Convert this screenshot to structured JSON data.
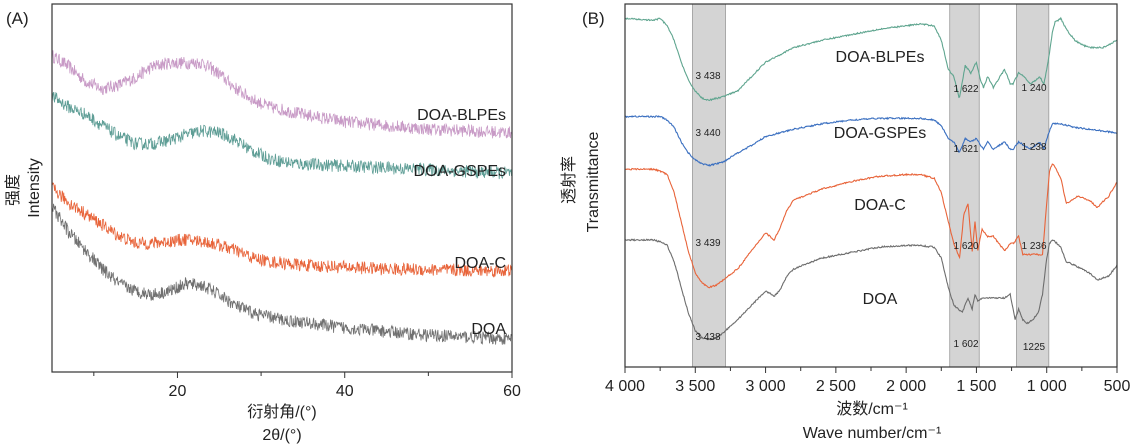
{
  "chart_data": [
    {
      "panel": "(A)",
      "type": "line",
      "title": "",
      "xlabel_cn": "衍射角/(°)",
      "xlabel": "2θ/(°)",
      "ylabel_cn": "强度",
      "ylabel": "Intensity",
      "xlim": [
        5,
        60
      ],
      "xticks": [
        20,
        40,
        60
      ],
      "xticks_minor": [
        10,
        30,
        50
      ],
      "yticks": [],
      "grid": false,
      "legend": "inline labels at right",
      "series": [
        {
          "name": "DOA-BLPEs",
          "color": "#c89ac6",
          "x": [
            5,
            7,
            9,
            11,
            13,
            15,
            17,
            19,
            21,
            23,
            25,
            27,
            29,
            31,
            33,
            35,
            40,
            45,
            50,
            55,
            60
          ],
          "y": [
            0.86,
            0.83,
            0.79,
            0.77,
            0.78,
            0.8,
            0.83,
            0.84,
            0.84,
            0.84,
            0.81,
            0.77,
            0.74,
            0.72,
            0.71,
            0.7,
            0.68,
            0.67,
            0.66,
            0.655,
            0.65
          ]
        },
        {
          "name": "DOA-GSPEs",
          "color": "#5f9e96",
          "x": [
            5,
            7,
            9,
            11,
            13,
            15,
            17,
            19,
            21,
            23,
            25,
            27,
            29,
            31,
            33,
            35,
            40,
            45,
            50,
            55,
            60
          ],
          "y": [
            0.75,
            0.72,
            0.7,
            0.67,
            0.64,
            0.62,
            0.62,
            0.63,
            0.645,
            0.655,
            0.65,
            0.63,
            0.6,
            0.58,
            0.57,
            0.565,
            0.56,
            0.555,
            0.55,
            0.545,
            0.54
          ]
        },
        {
          "name": "DOA-C",
          "color": "#e8643a",
          "x": [
            5,
            7,
            9,
            11,
            13,
            15,
            17,
            19,
            21,
            23,
            25,
            27,
            29,
            31,
            33,
            35,
            40,
            45,
            50,
            55,
            60
          ],
          "y": [
            0.5,
            0.46,
            0.43,
            0.4,
            0.37,
            0.35,
            0.35,
            0.355,
            0.36,
            0.355,
            0.345,
            0.33,
            0.31,
            0.3,
            0.295,
            0.29,
            0.285,
            0.28,
            0.278,
            0.276,
            0.275
          ]
        },
        {
          "name": "DOA",
          "color": "#707070",
          "x": [
            5,
            7,
            9,
            11,
            13,
            15,
            17,
            19,
            21,
            23,
            25,
            27,
            29,
            31,
            33,
            35,
            40,
            45,
            50,
            55,
            60
          ],
          "y": [
            0.45,
            0.38,
            0.33,
            0.28,
            0.24,
            0.22,
            0.21,
            0.22,
            0.24,
            0.235,
            0.21,
            0.18,
            0.16,
            0.15,
            0.14,
            0.135,
            0.12,
            0.11,
            0.1,
            0.095,
            0.09
          ]
        }
      ]
    },
    {
      "panel": "(B)",
      "type": "line",
      "title": "",
      "xlabel_cn": "波数/cm⁻¹",
      "xlabel": "Wave number/cm⁻¹",
      "ylabel_cn": "透射率",
      "ylabel": "Transmittance",
      "xlim": [
        4000,
        500
      ],
      "xticks": [
        4000,
        3500,
        3000,
        2500,
        2000,
        1500,
        1000,
        500
      ],
      "xtick_labels": [
        "4 000",
        "3 500",
        "3 000",
        "2 500",
        "2 000",
        "1 500",
        "1 000",
        "500"
      ],
      "yticks": [],
      "grid": false,
      "legend": "inline labels at center",
      "bands": [
        {
          "from": 3520,
          "to": 3285
        },
        {
          "from": 1690,
          "to": 1480
        },
        {
          "from": 1215,
          "to": 985
        }
      ],
      "series": [
        {
          "name": "DOA-BLPEs",
          "color": "#5fa58f",
          "x": [
            4000,
            3800,
            3750,
            3700,
            3650,
            3600,
            3550,
            3500,
            3450,
            3400,
            3300,
            3200,
            3100,
            3000,
            2900,
            2800,
            2600,
            2400,
            2200,
            2000,
            1900,
            1800,
            1750,
            1700,
            1660,
            1622,
            1580,
            1540,
            1500,
            1470,
            1450,
            1420,
            1380,
            1300,
            1260,
            1240,
            1200,
            1160,
            1120,
            1080,
            1050,
            1020,
            990,
            960,
            940,
            900,
            860,
            800,
            760,
            700,
            600,
            500
          ],
          "y": [
            0.96,
            0.955,
            0.96,
            0.94,
            0.9,
            0.84,
            0.79,
            0.76,
            0.74,
            0.735,
            0.745,
            0.76,
            0.8,
            0.84,
            0.86,
            0.88,
            0.9,
            0.915,
            0.93,
            0.94,
            0.945,
            0.94,
            0.9,
            0.82,
            0.8,
            0.74,
            0.83,
            0.81,
            0.84,
            0.79,
            0.77,
            0.8,
            0.77,
            0.82,
            0.78,
            0.78,
            0.81,
            0.8,
            0.78,
            0.79,
            0.8,
            0.78,
            0.84,
            0.92,
            0.95,
            0.96,
            0.93,
            0.9,
            0.89,
            0.88,
            0.88,
            0.9
          ]
        },
        {
          "name": "DOA-GSPEs",
          "color": "#3a6fc0",
          "x": [
            4000,
            3800,
            3750,
            3700,
            3650,
            3600,
            3550,
            3500,
            3450,
            3400,
            3300,
            3200,
            3100,
            3000,
            2800,
            2600,
            2400,
            2200,
            2000,
            1900,
            1800,
            1750,
            1700,
            1660,
            1621,
            1580,
            1540,
            1500,
            1470,
            1450,
            1420,
            1380,
            1300,
            1260,
            1238,
            1200,
            1160,
            1120,
            1080,
            1050,
            1020,
            990,
            960,
            900,
            800,
            700,
            600,
            500
          ],
          "y": [
            0.69,
            0.69,
            0.69,
            0.68,
            0.66,
            0.62,
            0.59,
            0.57,
            0.56,
            0.555,
            0.565,
            0.59,
            0.61,
            0.635,
            0.655,
            0.67,
            0.68,
            0.685,
            0.685,
            0.685,
            0.68,
            0.665,
            0.63,
            0.62,
            0.59,
            0.63,
            0.62,
            0.63,
            0.61,
            0.6,
            0.62,
            0.6,
            0.62,
            0.6,
            0.6,
            0.62,
            0.61,
            0.6,
            0.61,
            0.62,
            0.6,
            0.64,
            0.67,
            0.67,
            0.66,
            0.655,
            0.65,
            0.645
          ]
        },
        {
          "name": "DOA-C",
          "color": "#e8643a",
          "x": [
            4000,
            3800,
            3750,
            3700,
            3650,
            3600,
            3550,
            3500,
            3450,
            3400,
            3350,
            3300,
            3200,
            3100,
            3000,
            2940,
            2900,
            2850,
            2800,
            2600,
            2400,
            2200,
            2000,
            1900,
            1800,
            1750,
            1700,
            1660,
            1620,
            1590,
            1560,
            1530,
            1510,
            1490,
            1460,
            1420,
            1380,
            1300,
            1260,
            1236,
            1200,
            1170,
            1140,
            1100,
            1060,
            1030,
            1000,
            980,
            960,
            940,
            900,
            860,
            820,
            780,
            700,
            640,
            560,
            500
          ],
          "y": [
            0.545,
            0.545,
            0.54,
            0.53,
            0.48,
            0.4,
            0.32,
            0.26,
            0.23,
            0.22,
            0.225,
            0.24,
            0.27,
            0.32,
            0.37,
            0.35,
            0.38,
            0.43,
            0.46,
            0.49,
            0.51,
            0.525,
            0.53,
            0.53,
            0.52,
            0.48,
            0.4,
            0.34,
            0.3,
            0.42,
            0.45,
            0.32,
            0.4,
            0.32,
            0.38,
            0.36,
            0.36,
            0.32,
            0.34,
            0.34,
            0.36,
            0.31,
            0.31,
            0.31,
            0.31,
            0.31,
            0.45,
            0.54,
            0.56,
            0.55,
            0.52,
            0.45,
            0.46,
            0.47,
            0.46,
            0.44,
            0.47,
            0.51
          ]
        },
        {
          "name": "DOA",
          "color": "#6d6d6d",
          "x": [
            4000,
            3800,
            3750,
            3700,
            3650,
            3600,
            3550,
            3500,
            3450,
            3400,
            3350,
            3300,
            3200,
            3100,
            3000,
            2940,
            2900,
            2850,
            2800,
            2600,
            2400,
            2200,
            2000,
            1900,
            1800,
            1750,
            1700,
            1660,
            1602,
            1560,
            1530,
            1510,
            1490,
            1460,
            1420,
            1380,
            1300,
            1260,
            1225,
            1200,
            1170,
            1140,
            1100,
            1060,
            1030,
            1000,
            980,
            960,
            940,
            900,
            860,
            800,
            700,
            640,
            560,
            500
          ],
          "y": [
            0.35,
            0.35,
            0.345,
            0.335,
            0.29,
            0.22,
            0.15,
            0.1,
            0.08,
            0.075,
            0.08,
            0.095,
            0.13,
            0.17,
            0.21,
            0.195,
            0.21,
            0.25,
            0.27,
            0.3,
            0.315,
            0.33,
            0.335,
            0.335,
            0.33,
            0.3,
            0.22,
            0.17,
            0.15,
            0.19,
            0.16,
            0.2,
            0.18,
            0.19,
            0.19,
            0.19,
            0.19,
            0.2,
            0.13,
            0.16,
            0.13,
            0.12,
            0.13,
            0.15,
            0.2,
            0.3,
            0.34,
            0.35,
            0.345,
            0.33,
            0.29,
            0.28,
            0.26,
            0.24,
            0.25,
            0.28
          ]
        }
      ],
      "annotations": [
        {
          "text": "3 438",
          "series": "DOA-BLPEs"
        },
        {
          "text": "3 440",
          "series": "DOA-GSPEs"
        },
        {
          "text": "3 439",
          "series": "DOA-C"
        },
        {
          "text": "3 438",
          "series": "DOA"
        },
        {
          "text": "1 622",
          "series": "DOA-BLPEs"
        },
        {
          "text": "1 621",
          "series": "DOA-GSPEs"
        },
        {
          "text": "1 620",
          "series": "DOA-C"
        },
        {
          "text": "1 602",
          "series": "DOA"
        },
        {
          "text": "1 240",
          "series": "DOA-BLPEs"
        },
        {
          "text": "1 238",
          "series": "DOA-GSPEs"
        },
        {
          "text": "1 236",
          "series": "DOA-C"
        },
        {
          "text": "1225",
          "series": "DOA"
        }
      ]
    }
  ]
}
